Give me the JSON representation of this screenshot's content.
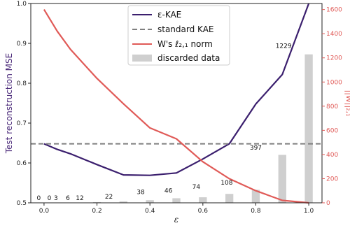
{
  "chart_data": {
    "type": "line",
    "x": [
      0.0,
      0.05,
      0.1,
      0.2,
      0.3,
      0.4,
      0.5,
      0.6,
      0.7,
      0.8,
      0.9,
      1.0
    ],
    "xlabel": "ε",
    "xlim": [
      -0.05,
      1.05
    ],
    "xticks": [
      0.0,
      0.2,
      0.4,
      0.6,
      0.8,
      1.0
    ],
    "xtick_labels": [
      "0.0",
      "0.2",
      "0.4",
      "0.6",
      "0.8",
      "1.0"
    ],
    "ylabel": "Test reconstruction MSE",
    "ylim": [
      0.5,
      1.0
    ],
    "yticks": [
      0.5,
      0.6,
      0.7,
      0.8,
      0.9,
      1.0
    ],
    "ytick_labels": [
      "0.5",
      "0.6",
      "0.7",
      "0.8",
      "0.9",
      "1.0"
    ],
    "y2label": "||W||₂,₁",
    "y2lim": [
      0,
      1650
    ],
    "y2ticks": [
      0,
      200,
      400,
      600,
      800,
      1000,
      1200,
      1400,
      1600
    ],
    "y2tick_labels": [
      "0",
      "200",
      "400",
      "600",
      "800",
      "1000",
      "1200",
      "1400",
      "1600"
    ],
    "series": [
      {
        "name": "ε-KAE",
        "axis": "left",
        "color": "#3b1f6e",
        "x": [
          0.0,
          0.05,
          0.1,
          0.2,
          0.3,
          0.4,
          0.5,
          0.6,
          0.7,
          0.8,
          0.9,
          1.0
        ],
        "values": [
          0.648,
          0.634,
          0.623,
          0.596,
          0.57,
          0.569,
          0.575,
          0.61,
          0.648,
          0.748,
          0.822,
          1.0
        ]
      },
      {
        "name": "standard KAE",
        "axis": "left",
        "style": "dashed",
        "color": "#7f7f7f",
        "x": [
          -0.05,
          1.05
        ],
        "values": [
          0.648,
          0.648
        ]
      },
      {
        "name": "W's ℓ₂,₁ norm",
        "axis": "right",
        "color": "#e05a57",
        "x": [
          0.0,
          0.05,
          0.1,
          0.2,
          0.3,
          0.4,
          0.5,
          0.6,
          0.7,
          0.8,
          0.9,
          1.0
        ],
        "values": [
          1600,
          1420,
          1270,
          1030,
          820,
          620,
          530,
          340,
          200,
          100,
          20,
          0
        ]
      }
    ],
    "bars": {
      "name": "discarded data",
      "axis": "right",
      "color": "#cfcfcf",
      "width": 0.03,
      "x": [
        0.0,
        0.05,
        0.1,
        0.2,
        0.3,
        0.4,
        0.5,
        0.6,
        0.7,
        0.8,
        0.9,
        1.0
      ],
      "values": [
        0,
        0,
        3,
        6,
        12,
        22,
        38,
        46,
        74,
        108,
        397,
        1229
      ],
      "labels": [
        "0",
        "0",
        "3",
        "6",
        "12",
        "22",
        "38",
        "46",
        "74",
        "108",
        "397",
        "1229"
      ],
      "label_x": [
        -0.02,
        0.02,
        0.045,
        0.09,
        0.135,
        0.245,
        0.365,
        0.47,
        0.575,
        0.69,
        0.8,
        0.905
      ],
      "label_y": [
        0,
        0,
        0,
        0,
        0,
        12,
        50,
        62,
        94,
        128,
        417,
        1259
      ],
      "annotation_note": "labels drawn above bars, in data units"
    },
    "legend": {
      "placement": "top-center",
      "entries": [
        "ε-KAE",
        "standard KAE",
        "W's ℓ₂,₁ norm",
        "discarded data"
      ]
    },
    "grid": false
  }
}
